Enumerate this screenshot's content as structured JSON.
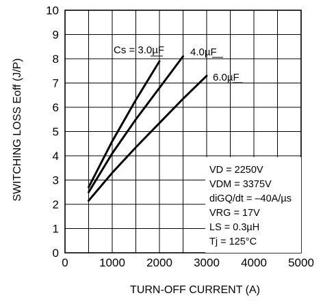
{
  "chart_data": {
    "type": "line",
    "xlabel": "TURN-OFF CURRENT  (A)",
    "ylabel": "SWITCHING LOSS  Eoff (J/P)",
    "xlim": [
      0,
      5000
    ],
    "ylim": [
      0,
      10
    ],
    "x_ticks": [
      "0",
      "1000",
      "2000",
      "3000",
      "4000",
      "5000"
    ],
    "y_ticks": [
      "0",
      "1",
      "2",
      "3",
      "4",
      "5",
      "6",
      "7",
      "8",
      "9",
      "10"
    ],
    "grid": true,
    "series": [
      {
        "name": "Cs = 3.0µF",
        "x": [
          500,
          1000,
          1500,
          2000
        ],
        "y": [
          2.7,
          4.6,
          6.3,
          7.9
        ]
      },
      {
        "name": "4.0µF",
        "x": [
          500,
          1000,
          1500,
          2000,
          2500
        ],
        "y": [
          2.5,
          4.1,
          5.5,
          6.8,
          8.1
        ]
      },
      {
        "name": "6.0µF",
        "x": [
          500,
          1000,
          1500,
          2000,
          2500,
          3000
        ],
        "y": [
          2.15,
          3.3,
          4.35,
          5.35,
          6.35,
          7.3
        ]
      }
    ],
    "conditions": [
      "VD = 2250V",
      "VDM = 3375V",
      "diGQ/dt = –40A/µs",
      "VRG = 17V",
      "LS = 0.3µH",
      "Tj = 125°C"
    ]
  }
}
